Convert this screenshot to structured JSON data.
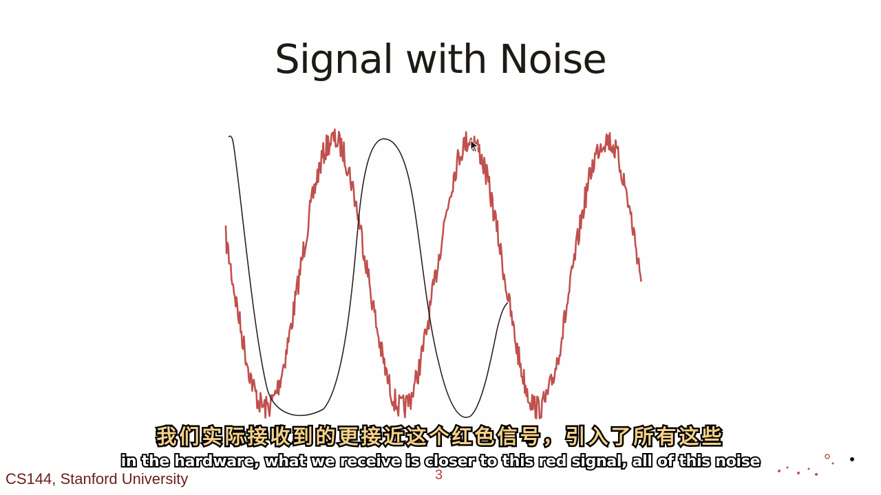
{
  "slide": {
    "title": "Signal with Noise",
    "footer": "CS144, Stanford University",
    "page_number": "3"
  },
  "subtitles": {
    "chinese": "我们实际接收到的更接近这个红色信号，引入了所有这些",
    "english": "in the hardware, what we receive is closer to this red signal, all of this noise"
  },
  "colors": {
    "noisy_signal": "#c0504d",
    "hand_drawn_sketch": "#2a2020",
    "title": "#1e1a14",
    "footer": "#6b1e1e",
    "subtitle_zh": "#f6d18a",
    "subtitle_en": "#ffffff"
  },
  "icons": {
    "cursor": "mouse-pointer-icon",
    "decoration": "scatter-dots-decoration"
  }
}
